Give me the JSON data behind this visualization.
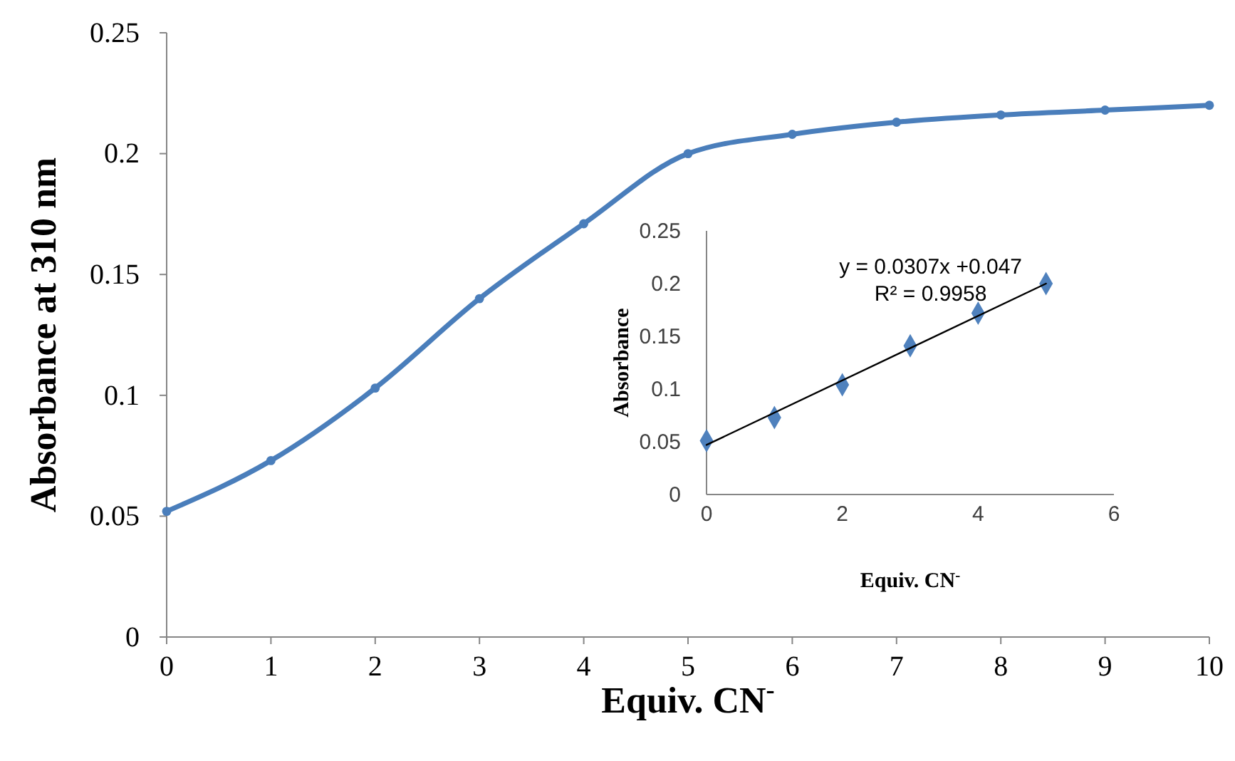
{
  "chart_data": [
    {
      "type": "line",
      "xlabel": "Equiv. CN$^{-}$",
      "ylabel": "Absorbance at 310 nm",
      "x": [
        0,
        1,
        2,
        3,
        4,
        5,
        6,
        7,
        8,
        9,
        10
      ],
      "xlim": [
        0,
        10
      ],
      "xticks": [
        0,
        1,
        2,
        3,
        4,
        5,
        6,
        7,
        8,
        9,
        10
      ],
      "ylim": [
        0,
        0.25
      ],
      "yticks": [
        0,
        0.05,
        0.1,
        0.15,
        0.2,
        0.25
      ],
      "grid": false,
      "marker": "circle",
      "line_style": "solid",
      "series": [
        {
          "color": "#4a7ebb",
          "values": [
            0.052,
            0.073,
            0.103,
            0.14,
            0.171,
            0.2,
            0.208,
            0.213,
            0.216,
            0.218,
            0.22
          ]
        }
      ]
    },
    {
      "type": "scatter",
      "xlabel": "Equiv. CN$^{-}$",
      "ylabel": "Absorbance",
      "xlim": [
        0,
        6
      ],
      "xticks": [
        0,
        2,
        4,
        6
      ],
      "ylim": [
        0,
        0.25
      ],
      "yticks": [
        0,
        0.05,
        0.1,
        0.15,
        0.2,
        0.25
      ],
      "grid": false,
      "marker": "diamond",
      "annotations": [
        "y = 0.0307x +0.047",
        "R² = 0.9958"
      ],
      "series": [
        {
          "color": "#4f81bd",
          "x": [
            0,
            1,
            2,
            3,
            4,
            5
          ],
          "values": [
            0.051,
            0.073,
            0.104,
            0.141,
            0.172,
            0.2
          ]
        },
        {
          "type": "line",
          "color": "#000000",
          "marker": "none",
          "x": [
            0,
            5
          ],
          "values": [
            0.047,
            0.2
          ]
        }
      ]
    }
  ]
}
